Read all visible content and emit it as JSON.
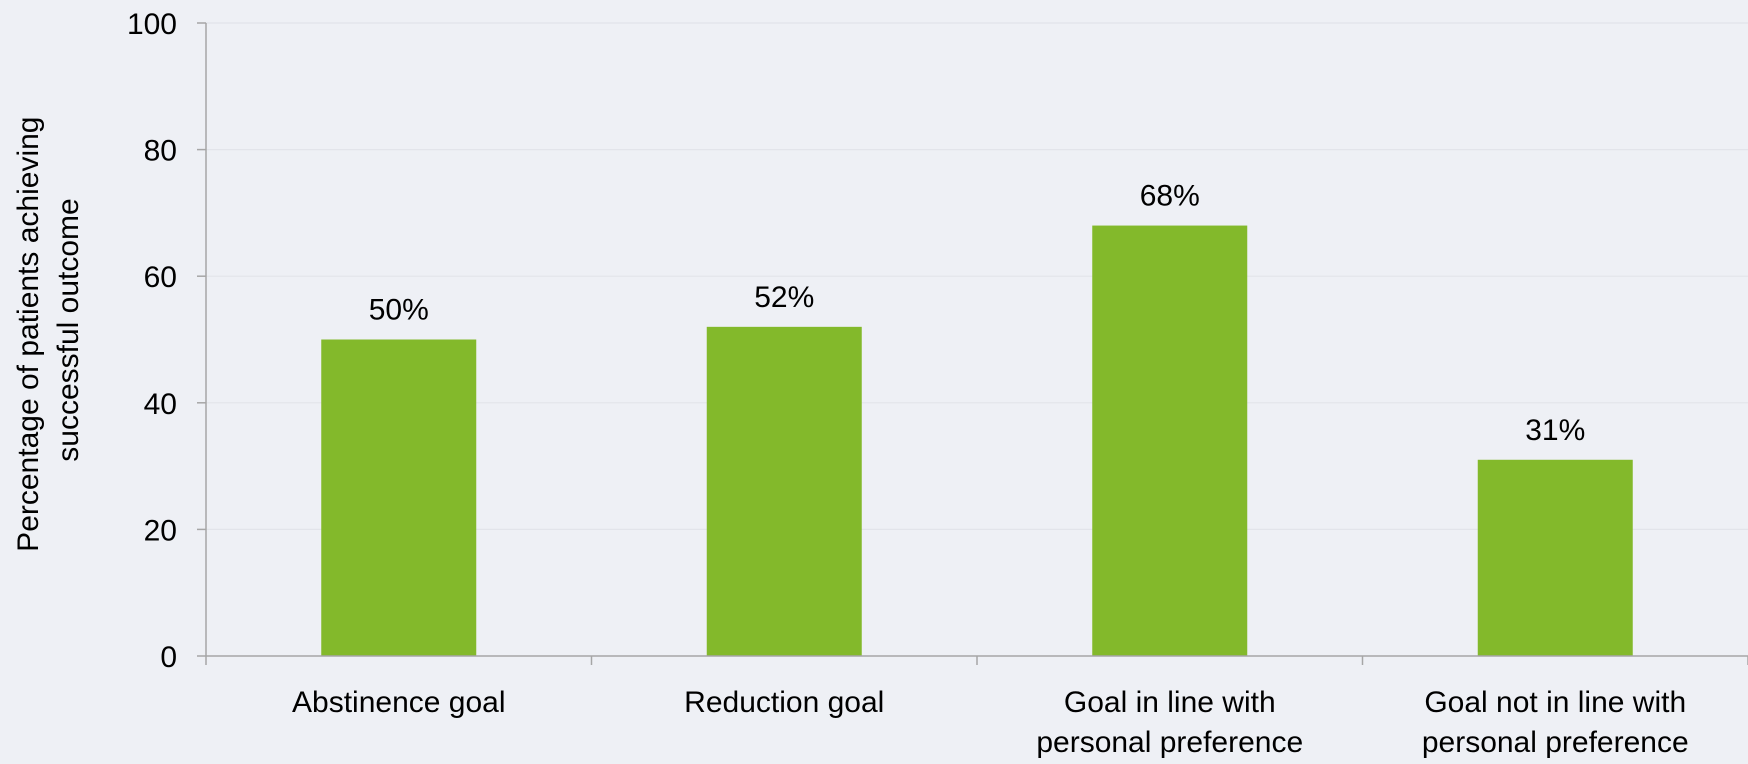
{
  "chart_data": {
    "type": "bar",
    "categories": [
      [
        "Abstinence goal"
      ],
      [
        "Reduction goal"
      ],
      [
        "Goal in line with",
        "personal preference"
      ],
      [
        "Goal not in line with",
        "personal preference"
      ]
    ],
    "values": [
      50,
      52,
      68,
      31
    ],
    "data_labels": [
      "50%",
      "52%",
      "68%",
      "31%"
    ],
    "ylabel": [
      "Percentage of patients achieving",
      "successful outcome"
    ],
    "xlabel": "",
    "title": "",
    "ylim": [
      0,
      100
    ],
    "yticks": [
      0,
      20,
      40,
      60,
      80,
      100
    ],
    "grid": true,
    "legend": "none",
    "colors": {
      "bar": "#83b92b",
      "grid": "#e2e4ea",
      "axis": "#a6a6a6",
      "background": "#eef0f5"
    }
  }
}
